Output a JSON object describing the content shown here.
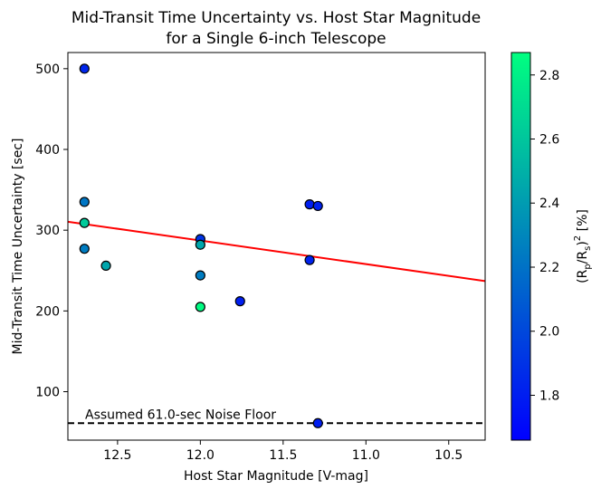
{
  "chart_data": {
    "type": "scatter",
    "title_line1": "Mid-Transit Time Uncertainty vs. Host Star Magnitude",
    "title_line2": "for a Single 6-inch Telescope",
    "xlabel": "Host Star Magnitude [V-mag]",
    "ylabel": "Mid-Transit Time Uncertainty [sec]",
    "xlim": [
      12.8,
      10.28
    ],
    "ylim": [
      40,
      520
    ],
    "xticks": [
      12.5,
      12.0,
      11.5,
      11.0,
      10.5
    ],
    "xtick_labels": [
      "12.5",
      "12.0",
      "11.5",
      "11.0",
      "10.5"
    ],
    "yticks": [
      100,
      200,
      300,
      400,
      500
    ],
    "ytick_labels": [
      "100",
      "200",
      "300",
      "400",
      "500"
    ],
    "points": [
      {
        "x": 12.7,
        "y": 500,
        "c": 1.84
      },
      {
        "x": 12.7,
        "y": 335,
        "c": 2.22
      },
      {
        "x": 12.7,
        "y": 309,
        "c": 2.62
      },
      {
        "x": 12.7,
        "y": 277,
        "c": 2.25
      },
      {
        "x": 12.57,
        "y": 256,
        "c": 2.45
      },
      {
        "x": 12.0,
        "y": 289,
        "c": 1.9
      },
      {
        "x": 12.0,
        "y": 282,
        "c": 2.45
      },
      {
        "x": 12.0,
        "y": 244,
        "c": 2.25
      },
      {
        "x": 12.0,
        "y": 205,
        "c": 2.85
      },
      {
        "x": 11.76,
        "y": 212,
        "c": 1.8
      },
      {
        "x": 11.34,
        "y": 332,
        "c": 1.8
      },
      {
        "x": 11.29,
        "y": 330,
        "c": 1.82
      },
      {
        "x": 11.34,
        "y": 263,
        "c": 1.82
      },
      {
        "x": 11.29,
        "y": 61,
        "c": 1.8
      }
    ],
    "fit_line": {
      "x": [
        12.8,
        10.28
      ],
      "y": [
        310.5,
        237
      ]
    },
    "noise_floor": {
      "y": 61.0,
      "label": "Assumed 61.0-sec Noise Floor"
    },
    "colorbar": {
      "label_base": "(R",
      "label_sub1": "p",
      "label_mid": "/R",
      "label_sub2": "s",
      "label_close": ")",
      "label_sup": "2",
      "label_tail": " [%]",
      "range": [
        1.66,
        2.87
      ],
      "ticks": [
        1.8,
        2.0,
        2.2,
        2.4,
        2.6,
        2.8
      ],
      "tick_labels": [
        "1.8",
        "2.0",
        "2.2",
        "2.4",
        "2.6",
        "2.8"
      ],
      "colormap": "winter",
      "color_low": "#0000ff",
      "color_high": "#00ff80"
    },
    "colors": {
      "fit_line": "#ff0000",
      "noise_floor": "#000000",
      "marker_edge": "#000000"
    }
  }
}
